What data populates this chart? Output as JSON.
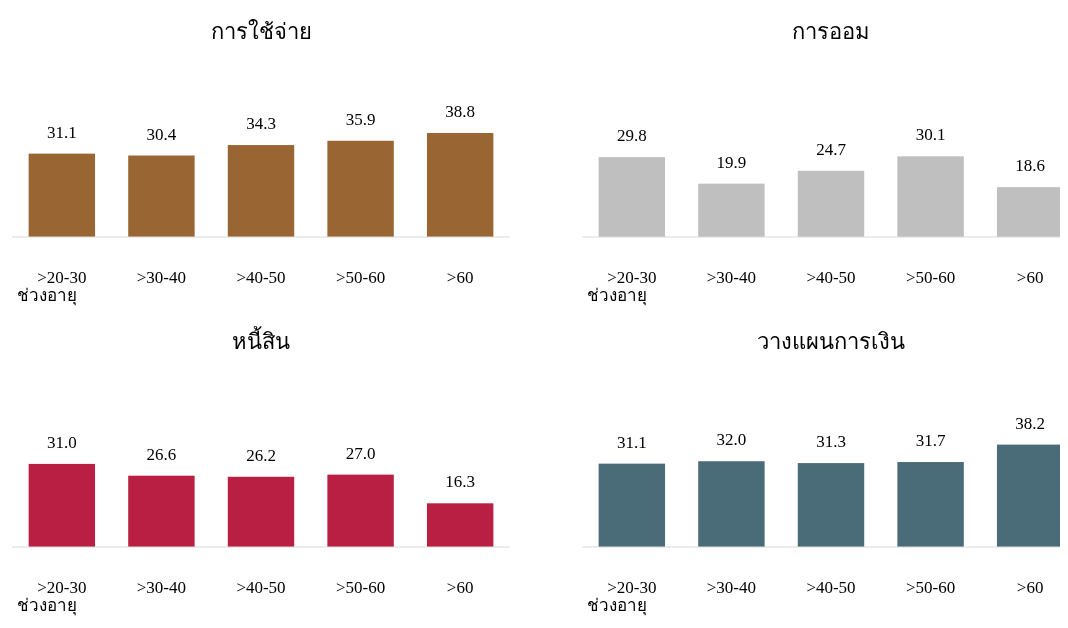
{
  "chart_data": [
    {
      "type": "bar",
      "title": "การใช้จ่าย",
      "xlabel": "ช่วงอายุ",
      "categories": [
        ">20-30",
        ">30-40",
        ">40-50",
        ">50-60",
        ">60"
      ],
      "values": [
        31.1,
        30.4,
        34.3,
        35.9,
        38.8
      ],
      "value_labels": [
        "31.1",
        "30.4",
        "34.3",
        "35.9",
        "38.8"
      ],
      "color": "#996633"
    },
    {
      "type": "bar",
      "title": "การออม",
      "xlabel": "ช่วงอายุ",
      "categories": [
        ">20-30",
        ">30-40",
        ">40-50",
        ">50-60",
        ">60"
      ],
      "values": [
        29.8,
        19.9,
        24.7,
        30.1,
        18.6
      ],
      "value_labels": [
        "29.8",
        "19.9",
        "24.7",
        "30.1",
        "18.6"
      ],
      "color": "#bfbfbf"
    },
    {
      "type": "bar",
      "title": "หนี้สิน",
      "xlabel": "ช่วงอายุ",
      "categories": [
        ">20-30",
        ">30-40",
        ">40-50",
        ">50-60",
        ">60"
      ],
      "values": [
        31.0,
        26.6,
        26.2,
        27.0,
        16.3
      ],
      "value_labels": [
        "31.0",
        "26.6",
        "26.2",
        "27.0",
        "16.3"
      ],
      "color": "#b91f43"
    },
    {
      "type": "bar",
      "title": "วางแผนการเงิน",
      "xlabel": "ช่วงอายุ",
      "categories": [
        ">20-30",
        ">30-40",
        ">40-50",
        ">50-60",
        ">60"
      ],
      "values": [
        31.1,
        32.0,
        31.3,
        31.7,
        38.2
      ],
      "value_labels": [
        "31.1",
        "32.0",
        "31.3",
        "31.7",
        "38.2"
      ],
      "color": "#4a6b78"
    }
  ]
}
